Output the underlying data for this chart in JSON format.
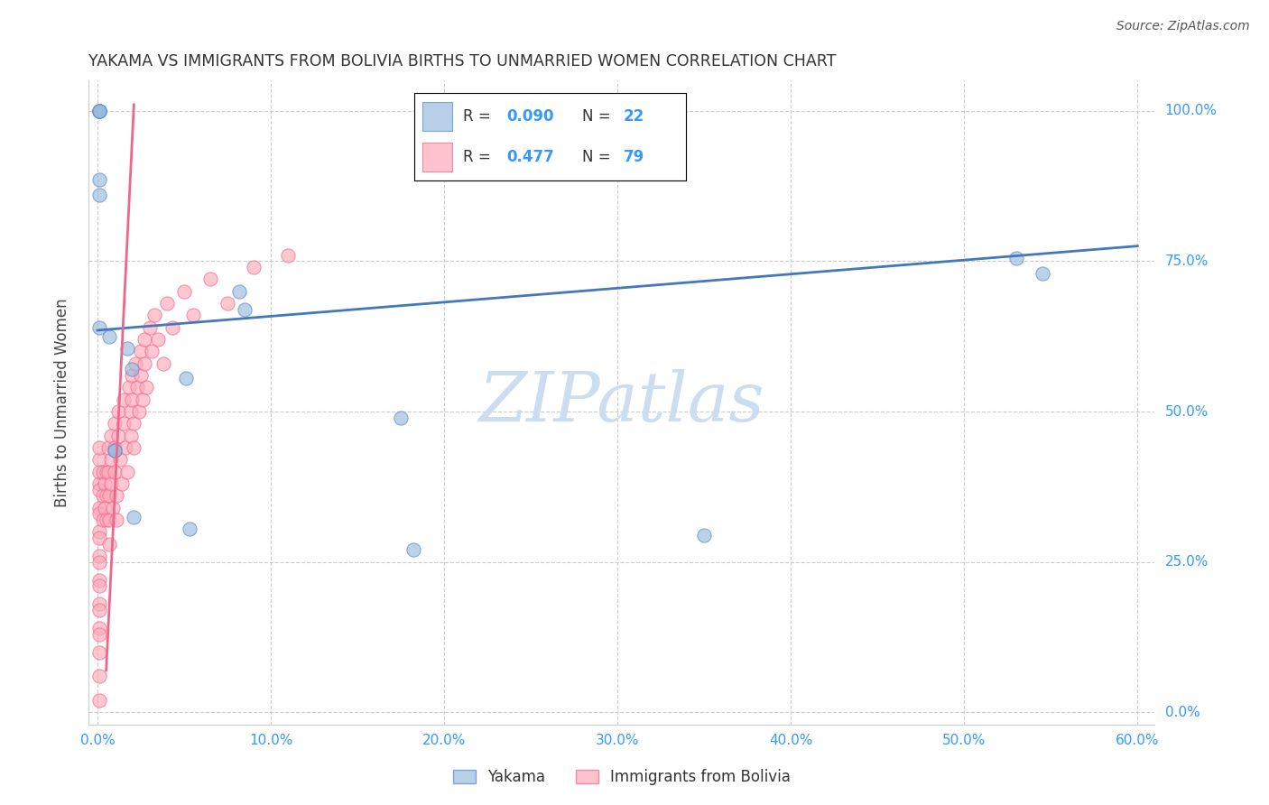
{
  "title": "YAKAMA VS IMMIGRANTS FROM BOLIVIA BIRTHS TO UNMARRIED WOMEN CORRELATION CHART",
  "source": "Source: ZipAtlas.com",
  "ylabel": "Births to Unmarried Women",
  "xlabel_ticks": [
    "0.0%",
    "10.0%",
    "20.0%",
    "30.0%",
    "40.0%",
    "50.0%",
    "60.0%"
  ],
  "xlabel_vals": [
    0.0,
    0.1,
    0.2,
    0.3,
    0.4,
    0.5,
    0.6
  ],
  "ylabel_ticks": [
    "0.0%",
    "25.0%",
    "50.0%",
    "75.0%",
    "100.0%"
  ],
  "ylabel_vals": [
    0.0,
    0.25,
    0.5,
    0.75,
    1.0
  ],
  "xlim": [
    -0.005,
    0.61
  ],
  "ylim": [
    -0.02,
    1.05
  ],
  "blue_color": "#99BBDD",
  "pink_color": "#FFAABB",
  "blue_edge_color": "#5588CC",
  "pink_edge_color": "#EE6688",
  "blue_line_color": "#4477BB",
  "pink_line_color": "#EE6688",
  "axis_tick_color": "#3399FF",
  "title_color": "#333333",
  "ylabel_color": "#444444",
  "watermark_color": "#CCDDEF",
  "legend_R1": "R = ",
  "legend_V1": "0.090",
  "legend_N1_label": "N = ",
  "legend_N1": "22",
  "legend_R2": "R = ",
  "legend_V2": "0.477",
  "legend_N2_label": "N = ",
  "legend_N2": "79",
  "legend_label1": "Yakama",
  "legend_label2": "Immigrants from Bolivia",
  "blue_trend_x": [
    0.0,
    0.6
  ],
  "blue_trend_y": [
    0.635,
    0.775
  ],
  "pink_trend_x": [
    0.005,
    0.021
  ],
  "pink_trend_y": [
    0.07,
    1.01
  ],
  "yakama_x": [
    0.001,
    0.001,
    0.001,
    0.001,
    0.007,
    0.01,
    0.01,
    0.017,
    0.02,
    0.021,
    0.051,
    0.053,
    0.082,
    0.085,
    0.175,
    0.182,
    0.35,
    0.53,
    0.545,
    0.001,
    0.001,
    0.001
  ],
  "yakama_y": [
    1.0,
    1.0,
    1.0,
    1.0,
    0.625,
    0.435,
    0.435,
    0.605,
    0.57,
    0.325,
    0.555,
    0.305,
    0.7,
    0.67,
    0.49,
    0.27,
    0.295,
    0.755,
    0.73,
    0.885,
    0.86,
    0.64
  ],
  "bolivia_x": [
    0.001,
    0.001,
    0.001,
    0.001,
    0.001,
    0.001,
    0.001,
    0.001,
    0.001,
    0.001,
    0.001,
    0.001,
    0.001,
    0.001,
    0.001,
    0.001,
    0.001,
    0.001,
    0.001,
    0.001,
    0.003,
    0.003,
    0.003,
    0.004,
    0.004,
    0.005,
    0.005,
    0.005,
    0.006,
    0.006,
    0.007,
    0.007,
    0.007,
    0.008,
    0.008,
    0.008,
    0.009,
    0.01,
    0.01,
    0.01,
    0.011,
    0.011,
    0.012,
    0.012,
    0.013,
    0.014,
    0.015,
    0.015,
    0.016,
    0.017,
    0.018,
    0.019,
    0.019,
    0.02,
    0.02,
    0.021,
    0.021,
    0.022,
    0.023,
    0.024,
    0.025,
    0.025,
    0.026,
    0.027,
    0.027,
    0.028,
    0.03,
    0.031,
    0.033,
    0.035,
    0.038,
    0.04,
    0.043,
    0.05,
    0.055,
    0.065,
    0.075,
    0.09,
    0.11
  ],
  "bolivia_y": [
    0.42,
    0.38,
    0.34,
    0.3,
    0.26,
    0.22,
    0.18,
    0.14,
    0.1,
    0.06,
    0.02,
    0.44,
    0.4,
    0.37,
    0.33,
    0.29,
    0.25,
    0.21,
    0.17,
    0.13,
    0.4,
    0.36,
    0.32,
    0.38,
    0.34,
    0.4,
    0.36,
    0.32,
    0.44,
    0.4,
    0.36,
    0.32,
    0.28,
    0.46,
    0.42,
    0.38,
    0.34,
    0.48,
    0.44,
    0.4,
    0.36,
    0.32,
    0.5,
    0.46,
    0.42,
    0.38,
    0.52,
    0.48,
    0.44,
    0.4,
    0.54,
    0.5,
    0.46,
    0.56,
    0.52,
    0.48,
    0.44,
    0.58,
    0.54,
    0.5,
    0.6,
    0.56,
    0.52,
    0.62,
    0.58,
    0.54,
    0.64,
    0.6,
    0.66,
    0.62,
    0.58,
    0.68,
    0.64,
    0.7,
    0.66,
    0.72,
    0.68,
    0.74,
    0.76
  ]
}
